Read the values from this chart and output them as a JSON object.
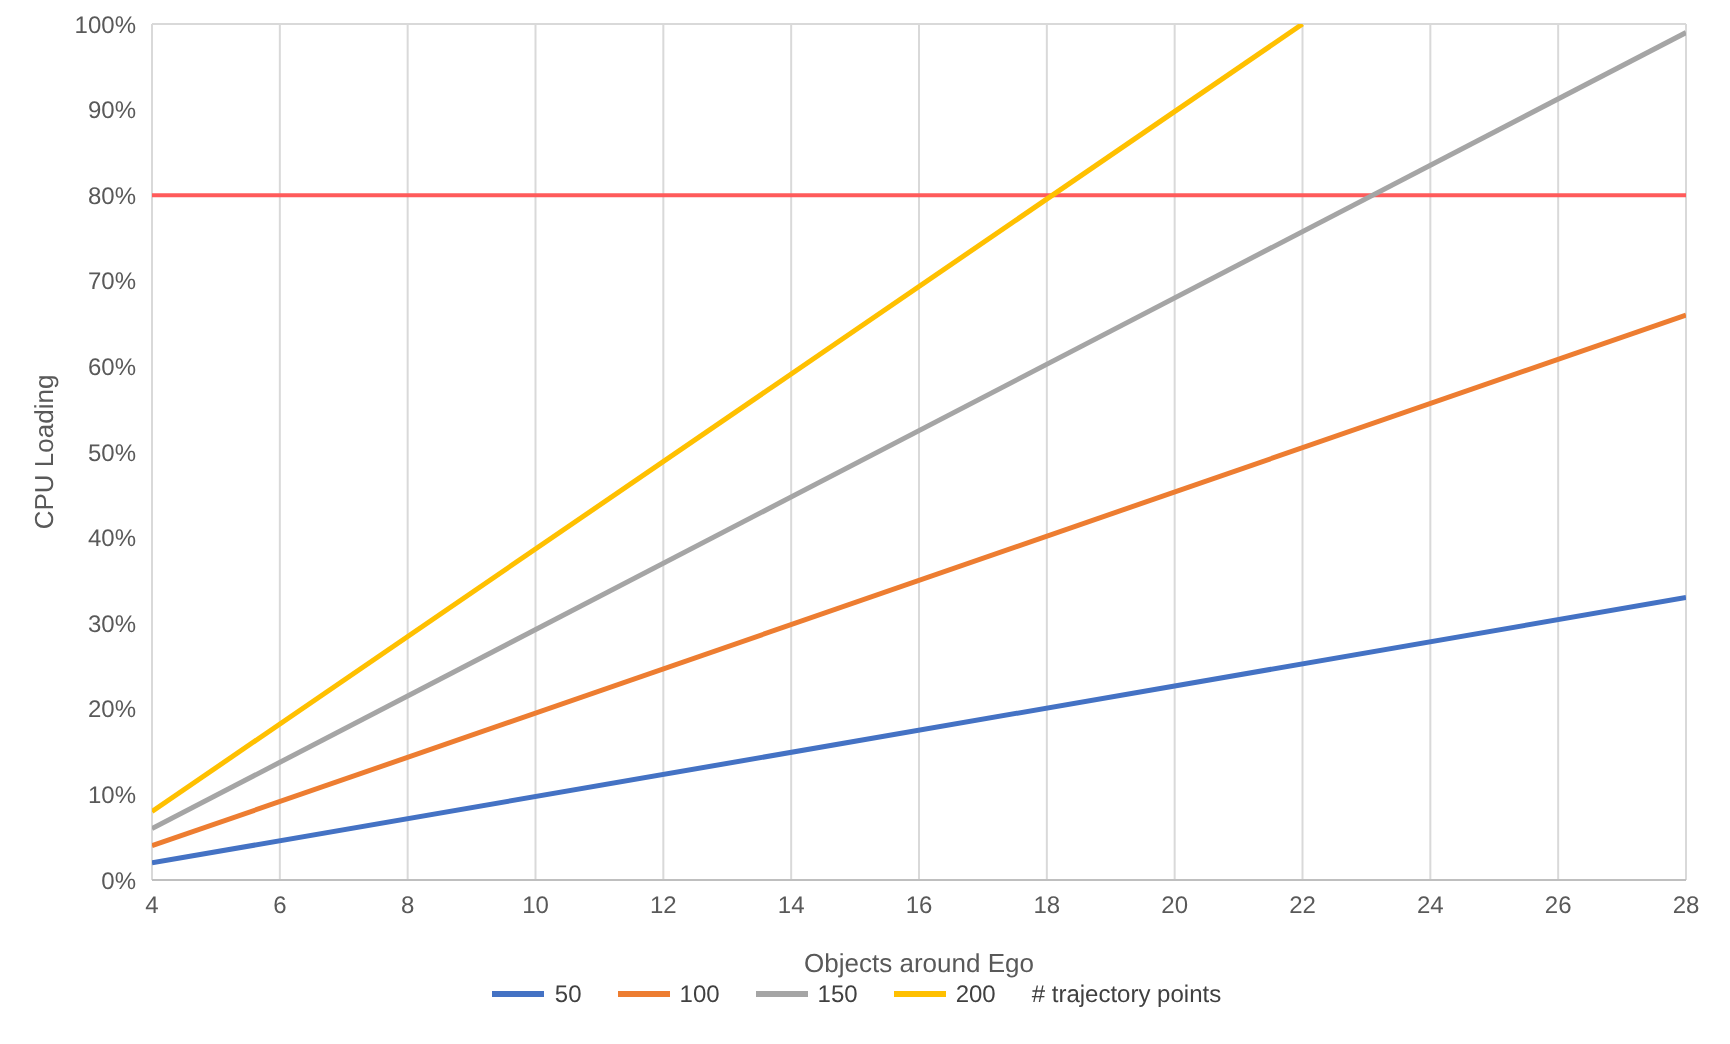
{
  "chart_data": {
    "type": "line",
    "xlabel": "Objects around Ego",
    "ylabel": "CPU Loading",
    "legend_title": "# trajectory points",
    "series": [
      {
        "name": "50",
        "color": "#4472c4",
        "x": [
          4,
          28
        ],
        "values": [
          2,
          33
        ]
      },
      {
        "name": "100",
        "color": "#ed7d31",
        "x": [
          4,
          28
        ],
        "values": [
          4,
          66
        ]
      },
      {
        "name": "150",
        "color": "#a5a5a5",
        "x": [
          4,
          28
        ],
        "values": [
          6,
          99
        ]
      },
      {
        "name": "200",
        "color": "#ffc000",
        "x": [
          4,
          22
        ],
        "values": [
          8,
          100
        ]
      }
    ],
    "xlim": [
      4,
      28
    ],
    "xticks": [
      4,
      6,
      8,
      10,
      12,
      14,
      16,
      18,
      20,
      22,
      24,
      26,
      28
    ],
    "ylim": [
      0,
      100
    ],
    "yticks": [
      {
        "value": 0,
        "label": "0%"
      },
      {
        "value": 10,
        "label": "10%"
      },
      {
        "value": 20,
        "label": "20%"
      },
      {
        "value": 30,
        "label": "30%"
      },
      {
        "value": 40,
        "label": "40%"
      },
      {
        "value": 50,
        "label": "50%"
      },
      {
        "value": 60,
        "label": "60%"
      },
      {
        "value": 70,
        "label": "70%"
      },
      {
        "value": 80,
        "label": "80%"
      },
      {
        "value": 90,
        "label": "90%"
      },
      {
        "value": 100,
        "label": "100%"
      }
    ],
    "ref_lines": [
      {
        "axis": "y",
        "value": 80,
        "label": null,
        "color": "#ff5b5b"
      }
    ],
    "grid": true,
    "legend": "bottom",
    "marker": "none",
    "line_style": "solid"
  }
}
